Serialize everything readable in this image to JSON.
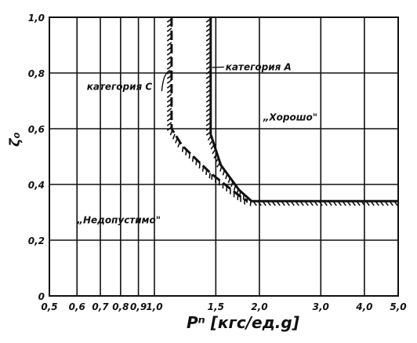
{
  "chart_data": {
    "type": "line",
    "x_scale": "log",
    "xlim": [
      0.5,
      5.0
    ],
    "ylim": [
      0,
      1.0
    ],
    "grid": true,
    "x_ticks": [
      {
        "value": 0.5,
        "label": "0,5"
      },
      {
        "value": 0.6,
        "label": "0,6"
      },
      {
        "value": 0.7,
        "label": "0,7"
      },
      {
        "value": 0.8,
        "label": "0,8"
      },
      {
        "value": 0.9,
        "label": "0,9"
      },
      {
        "value": 1.0,
        "label": "1,0"
      },
      {
        "value": 1.5,
        "label": "1,5"
      },
      {
        "value": 2.0,
        "label": "2,0"
      },
      {
        "value": 3.0,
        "label": "3,0"
      },
      {
        "value": 4.0,
        "label": "4,0"
      },
      {
        "value": 5.0,
        "label": "5,0"
      }
    ],
    "y_ticks": [
      {
        "value": 0,
        "label": "0"
      },
      {
        "value": 0.2,
        "label": "0,2"
      },
      {
        "value": 0.4,
        "label": "0,4"
      },
      {
        "value": 0.6,
        "label": "0,6"
      },
      {
        "value": 0.8,
        "label": "0,8"
      },
      {
        "value": 1.0,
        "label": "1,0"
      }
    ],
    "xlabel": "Pⁿ [кгс/ед.g]",
    "ylabel": "ζ₀",
    "series": [
      {
        "name": "категория С",
        "style": "dashed-hatched",
        "points": [
          [
            1.12,
            1.0
          ],
          [
            1.12,
            0.6
          ],
          [
            1.2,
            0.54
          ],
          [
            1.45,
            0.44
          ],
          [
            1.75,
            0.36
          ],
          [
            1.85,
            0.34
          ]
        ]
      },
      {
        "name": "категория А",
        "style": "hatched",
        "points": [
          [
            1.45,
            1.0
          ],
          [
            1.45,
            0.58
          ],
          [
            1.55,
            0.47
          ],
          [
            1.75,
            0.38
          ],
          [
            1.9,
            0.34
          ],
          [
            5.0,
            0.34
          ]
        ]
      }
    ],
    "annotations": [
      {
        "text": "категория С",
        "x": 0.64,
        "y": 0.74
      },
      {
        "text": "категория А",
        "x": 1.6,
        "y": 0.81
      },
      {
        "text": "„Хорошо\"",
        "x": 2.05,
        "y": 0.63
      },
      {
        "text": "„Недопустимо\"",
        "x": 0.6,
        "y": 0.26
      }
    ]
  }
}
